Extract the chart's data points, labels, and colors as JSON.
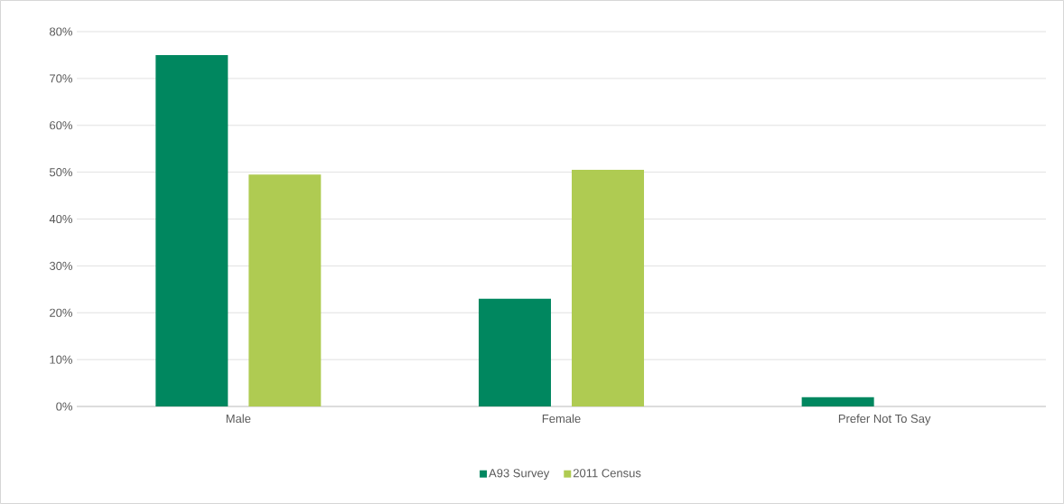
{
  "chart_data": {
    "type": "bar",
    "categories": [
      "Male",
      "Female",
      "Prefer Not To Say"
    ],
    "series": [
      {
        "name": "A93 Survey",
        "color": "#00875f",
        "values": [
          75,
          23,
          2
        ]
      },
      {
        "name": "2011 Census",
        "color": "#afcb52",
        "values": [
          49.5,
          50.5,
          null
        ]
      }
    ],
    "ylim": [
      0,
      80
    ],
    "yticks": [
      {
        "value": 0,
        "label": "0%"
      },
      {
        "value": 10,
        "label": "10%"
      },
      {
        "value": 20,
        "label": "20%"
      },
      {
        "value": 30,
        "label": "30%"
      },
      {
        "value": 40,
        "label": "40%"
      },
      {
        "value": 50,
        "label": "50%"
      },
      {
        "value": 60,
        "label": "60%"
      },
      {
        "value": 70,
        "label": "70%"
      },
      {
        "value": 80,
        "label": "80%"
      }
    ],
    "grid": "y",
    "legend": "bottom"
  }
}
